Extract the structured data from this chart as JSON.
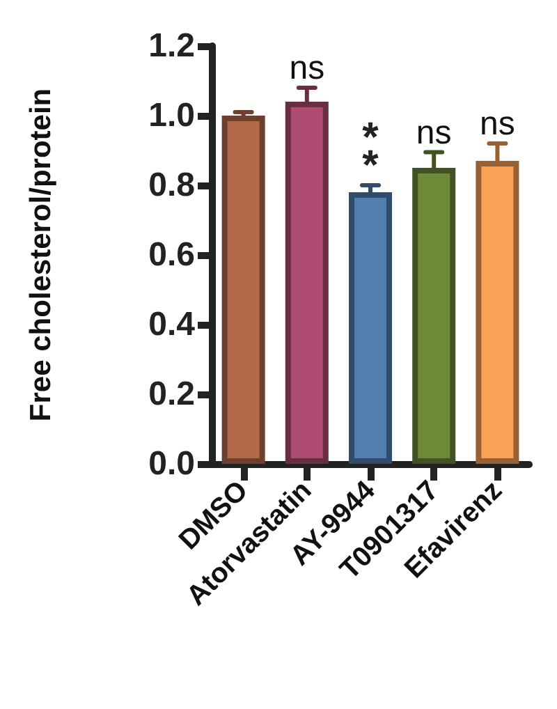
{
  "chart_data": {
    "type": "bar",
    "ylabel": "Free cholesterol/protein",
    "categories": [
      "DMSO",
      "Atorvastatin",
      "AY-9944",
      "T0901317",
      "Efavirenz"
    ],
    "values": [
      1.0,
      1.04,
      0.78,
      0.85,
      0.87
    ],
    "errors": [
      0.01,
      0.04,
      0.02,
      0.045,
      0.05
    ],
    "colors": [
      "#b46a4a",
      "#ad4c70",
      "#527fb0",
      "#6e8a38",
      "#fba155"
    ],
    "ylim": [
      0,
      1.2
    ],
    "yticks": [
      {
        "value": 0,
        "label": "0.0"
      },
      {
        "value": 0.2,
        "label": "0.2"
      },
      {
        "value": 0.4,
        "label": "0.4"
      },
      {
        "value": 0.6,
        "label": "0.6"
      },
      {
        "value": 0.8,
        "label": "0.8"
      },
      {
        "value": 1.0,
        "label": "1.0"
      },
      {
        "value": 1.2,
        "label": "1.2"
      }
    ],
    "annotations": [
      {
        "text": "ns",
        "x": "Atorvastatin",
        "y": 1.08
      },
      {
        "text": "**",
        "x": "AY-9944",
        "y": 0.8
      },
      {
        "text": "ns",
        "x": "T0901317",
        "y": 0.895
      },
      {
        "text": "ns",
        "x": "Efavirenz",
        "y": 0.92
      }
    ],
    "grid": false
  }
}
